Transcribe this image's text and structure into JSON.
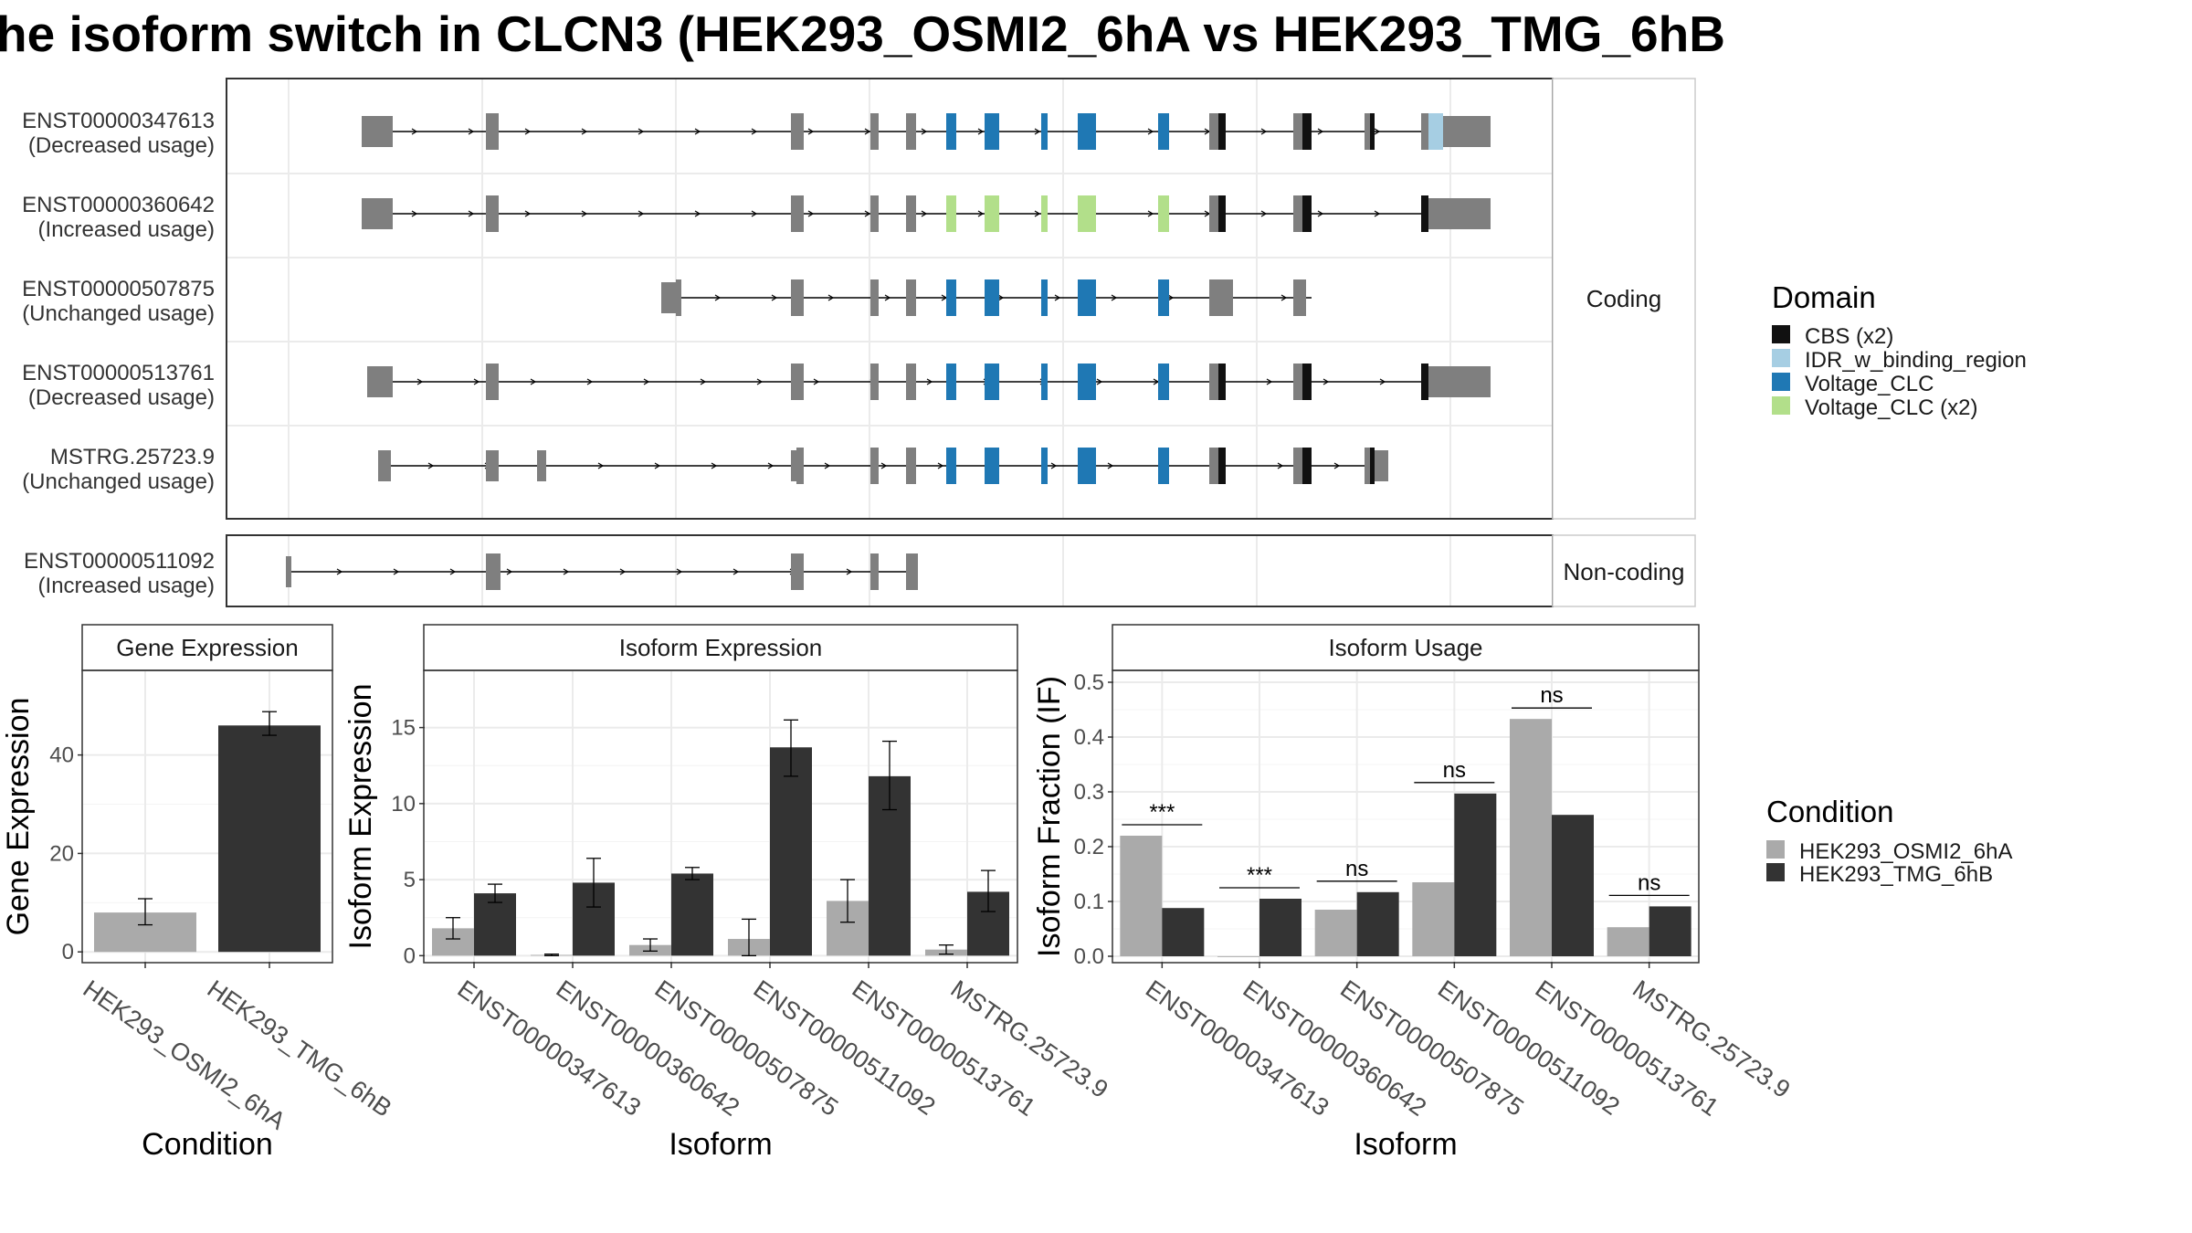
{
  "title": "he isoform switch in CLCN3 (HEK293_OSMI2_6hA vs HEK293_TMG_6hB",
  "colors": {
    "exon": "#7f7f7f",
    "cond_a": "#aaaaaa",
    "cond_b": "#333333",
    "domains": {
      "CBS (x2)": "#111111",
      "IDR_w_binding_region": "#a6cee3",
      "Voltage_CLC": "#1f78b4",
      "Voltage_CLC (x2)": "#b2df8a"
    }
  },
  "transcripts": {
    "coding_strip": "Coding",
    "noncoding_strip": "Non-coding",
    "rows": [
      {
        "id": "ENST00000347613",
        "usage": "(Decreased usage)"
      },
      {
        "id": "ENST00000360642",
        "usage": "(Increased usage)"
      },
      {
        "id": "ENST00000507875",
        "usage": "(Unchanged usage)"
      },
      {
        "id": "ENST00000513761",
        "usage": "(Decreased usage)"
      },
      {
        "id": "MSTRG.25723.9",
        "usage": "(Unchanged usage)"
      },
      {
        "id": "ENST00000511092",
        "usage": "(Increased usage)"
      }
    ]
  },
  "legend": {
    "domain_title": "Domain",
    "domain_items": [
      "CBS (x2)",
      "IDR_w_binding_region",
      "Voltage_CLC",
      "Voltage_CLC (x2)"
    ],
    "condition_title": "Condition",
    "condition_items": [
      "HEK293_OSMI2_6hA",
      "HEK293_TMG_6hB"
    ]
  },
  "chart_data": [
    {
      "type": "bar",
      "title": "Gene Expression",
      "xlabel": "Condition",
      "ylabel": "Gene Expression",
      "categories": [
        "HEK293_OSMI2_6hA",
        "HEK293_TMG_6hB"
      ],
      "values": [
        8,
        46
      ],
      "error_low": [
        5.5,
        44
      ],
      "error_high": [
        10.8,
        48.8
      ],
      "ylim": [
        -2,
        57
      ],
      "yticks": [
        0,
        20,
        40
      ]
    },
    {
      "type": "bar",
      "title": "Isoform Expression",
      "xlabel": "Isoform",
      "ylabel": "Isoform Expression",
      "categories": [
        "ENST00000347613",
        "ENST00000360642",
        "ENST00000507875",
        "ENST00000511092",
        "ENST00000513761",
        "MSTRG.25723.9"
      ],
      "series": [
        {
          "name": "HEK293_OSMI2_6hA",
          "values": [
            1.8,
            0.05,
            0.7,
            1.1,
            3.6,
            0.4
          ],
          "error_low": [
            1.1,
            0.0,
            0.3,
            0.0,
            2.2,
            0.1
          ],
          "error_high": [
            2.5,
            0.1,
            1.1,
            2.4,
            5.0,
            0.7
          ]
        },
        {
          "name": "HEK293_TMG_6hB",
          "values": [
            4.1,
            4.8,
            5.4,
            13.7,
            11.8,
            4.2
          ],
          "error_low": [
            3.5,
            3.2,
            5.0,
            11.8,
            9.6,
            2.9
          ],
          "error_high": [
            4.7,
            6.4,
            5.8,
            15.5,
            14.1,
            5.6
          ]
        }
      ],
      "ylim": [
        -0.4,
        18.7
      ],
      "yticks": [
        0,
        5,
        10,
        15
      ]
    },
    {
      "type": "bar",
      "title": "Isoform Usage",
      "xlabel": "Isoform",
      "ylabel": "Isoform Fraction (IF)",
      "categories": [
        "ENST00000347613",
        "ENST00000360642",
        "ENST00000507875",
        "ENST00000511092",
        "ENST00000513761",
        "MSTRG.25723.9"
      ],
      "series": [
        {
          "name": "HEK293_OSMI2_6hA",
          "values": [
            0.22,
            0.0,
            0.085,
            0.135,
            0.433,
            0.053
          ]
        },
        {
          "name": "HEK293_TMG_6hB",
          "values": [
            0.088,
            0.105,
            0.117,
            0.297,
            0.258,
            0.091
          ]
        }
      ],
      "significance": [
        "***",
        "***",
        "ns",
        "ns",
        "ns",
        "ns"
      ],
      "ylim": [
        -0.01,
        0.52
      ],
      "yticks": [
        0.0,
        0.1,
        0.2,
        0.3,
        0.4,
        0.5
      ]
    }
  ]
}
